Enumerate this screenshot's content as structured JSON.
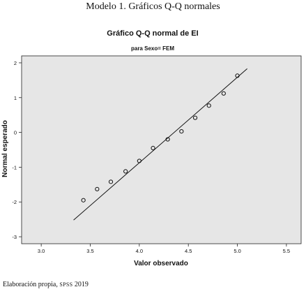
{
  "caption": {
    "top": "Modelo 1. Gráficos Q-Q normales",
    "bottom_prefix": "Elaboración propia, ",
    "bottom_software": "SPSS",
    "bottom_year": " 2019"
  },
  "chart_data": {
    "type": "scatter",
    "title": "Gráfico Q-Q normal de EI",
    "subtitle": "para Sexo= FEM",
    "xlabel": "Valor observado",
    "ylabel": "Normal esperado",
    "xlim": [
      2.8,
      5.65
    ],
    "ylim": [
      -3.2,
      2.2
    ],
    "xticks": [
      3.0,
      3.5,
      4.0,
      4.5,
      5.0,
      5.5
    ],
    "xtick_labels": [
      "3.0",
      "3.5",
      "4.0",
      "4.5",
      "5.0",
      "5.5"
    ],
    "yticks": [
      -3,
      -2,
      -1,
      0,
      1,
      2
    ],
    "ytick_labels": [
      "-3",
      "-2",
      "-1",
      "0",
      "1",
      "2"
    ],
    "grid": false,
    "background_color": "#e6e6e6",
    "points": [
      {
        "x": 3.43,
        "y": -1.95
      },
      {
        "x": 3.57,
        "y": -1.63
      },
      {
        "x": 3.71,
        "y": -1.42
      },
      {
        "x": 3.86,
        "y": -1.12
      },
      {
        "x": 4.0,
        "y": -0.82
      },
      {
        "x": 4.14,
        "y": -0.45
      },
      {
        "x": 4.29,
        "y": -0.2
      },
      {
        "x": 4.43,
        "y": 0.03
      },
      {
        "x": 4.57,
        "y": 0.42
      },
      {
        "x": 4.71,
        "y": 0.77
      },
      {
        "x": 4.86,
        "y": 1.12
      },
      {
        "x": 5.0,
        "y": 1.63
      }
    ],
    "reference_line": {
      "x": [
        3.33,
        5.1
      ],
      "y": [
        -2.52,
        1.83
      ]
    }
  }
}
